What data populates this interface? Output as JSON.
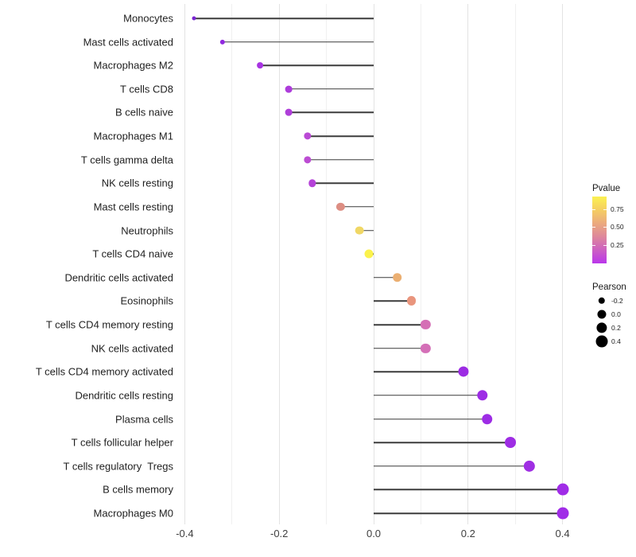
{
  "figure": {
    "background": "#ffffff"
  },
  "chart_data": {
    "type": "scatter",
    "variant": "lollipop",
    "orientation": "horizontal",
    "title": "",
    "xlabel": "",
    "ylabel": "",
    "xlim": [
      -0.45,
      0.45
    ],
    "grid": true,
    "legend_position": "right",
    "x_ticks": [
      "-0.4",
      "-0.2",
      "0.0",
      "0.2",
      "0.4"
    ],
    "x_tick_values": [
      -0.4,
      -0.2,
      0.0,
      0.2,
      0.4
    ],
    "x_minor_gridlines": [
      -0.3,
      -0.1,
      0.1,
      0.3
    ],
    "categories": [
      "Monocytes",
      "Mast cells activated",
      "Macrophages M2",
      "T cells CD8",
      "B cells naive",
      "Macrophages M1",
      "T cells gamma delta",
      "NK cells resting",
      "Mast cells resting",
      "Neutrophils",
      "T cells CD4 naive",
      "Dendritic cells activated",
      "Eosinophils",
      "T cells CD4 memory resting",
      "NK cells activated",
      "T cells CD4 memory activated",
      "Dendritic cells resting",
      "Plasma cells",
      "T cells follicular helper",
      "T cells regulatory  Tregs",
      "B cells memory",
      "Macrophages M0"
    ],
    "series": [
      {
        "name": "Pearson",
        "values": [
          -0.38,
          -0.32,
          -0.24,
          -0.18,
          -0.18,
          -0.14,
          -0.14,
          -0.13,
          -0.07,
          -0.03,
          -0.01,
          0.05,
          0.08,
          0.11,
          0.11,
          0.19,
          0.23,
          0.24,
          0.29,
          0.33,
          0.4,
          0.4
        ],
        "point_colors": [
          "#7A25D2",
          "#9129DF",
          "#A834E2",
          "#AD3CDB",
          "#AF3ED9",
          "#BA4AD5",
          "#BC4DD3",
          "#B542D8",
          "#DD8E83",
          "#F0D765",
          "#FBF24C",
          "#EBAF72",
          "#E9957D",
          "#D56FB5",
          "#D46FB7",
          "#9C2BE3",
          "#9D2CE5",
          "#9D2CE5",
          "#9E2DE4",
          "#9F2EE3",
          "#A02CE7",
          "#A02CE7"
        ]
      }
    ],
    "stem_color": "#3c3c3c",
    "legend": {
      "pvalue": {
        "title": "Pvalue",
        "tick_labels": [
          "0.75",
          "0.50",
          "0.25"
        ],
        "tick_values": [
          0.75,
          0.5,
          0.25
        ],
        "range": [
          0,
          0.92
        ],
        "gradient_top_to_bottom": [
          "#FBF151",
          "#F5CE62",
          "#EBAA7E",
          "#DE879B",
          "#CC5FC2",
          "#BA36EB"
        ]
      },
      "pearson": {
        "title": "Pearson",
        "size_labels": [
          "-0.2",
          "0.0",
          "0.2",
          "0.4"
        ],
        "size_values": [
          -0.2,
          0.0,
          0.2,
          0.4
        ],
        "dot_color": "#000000"
      }
    }
  }
}
